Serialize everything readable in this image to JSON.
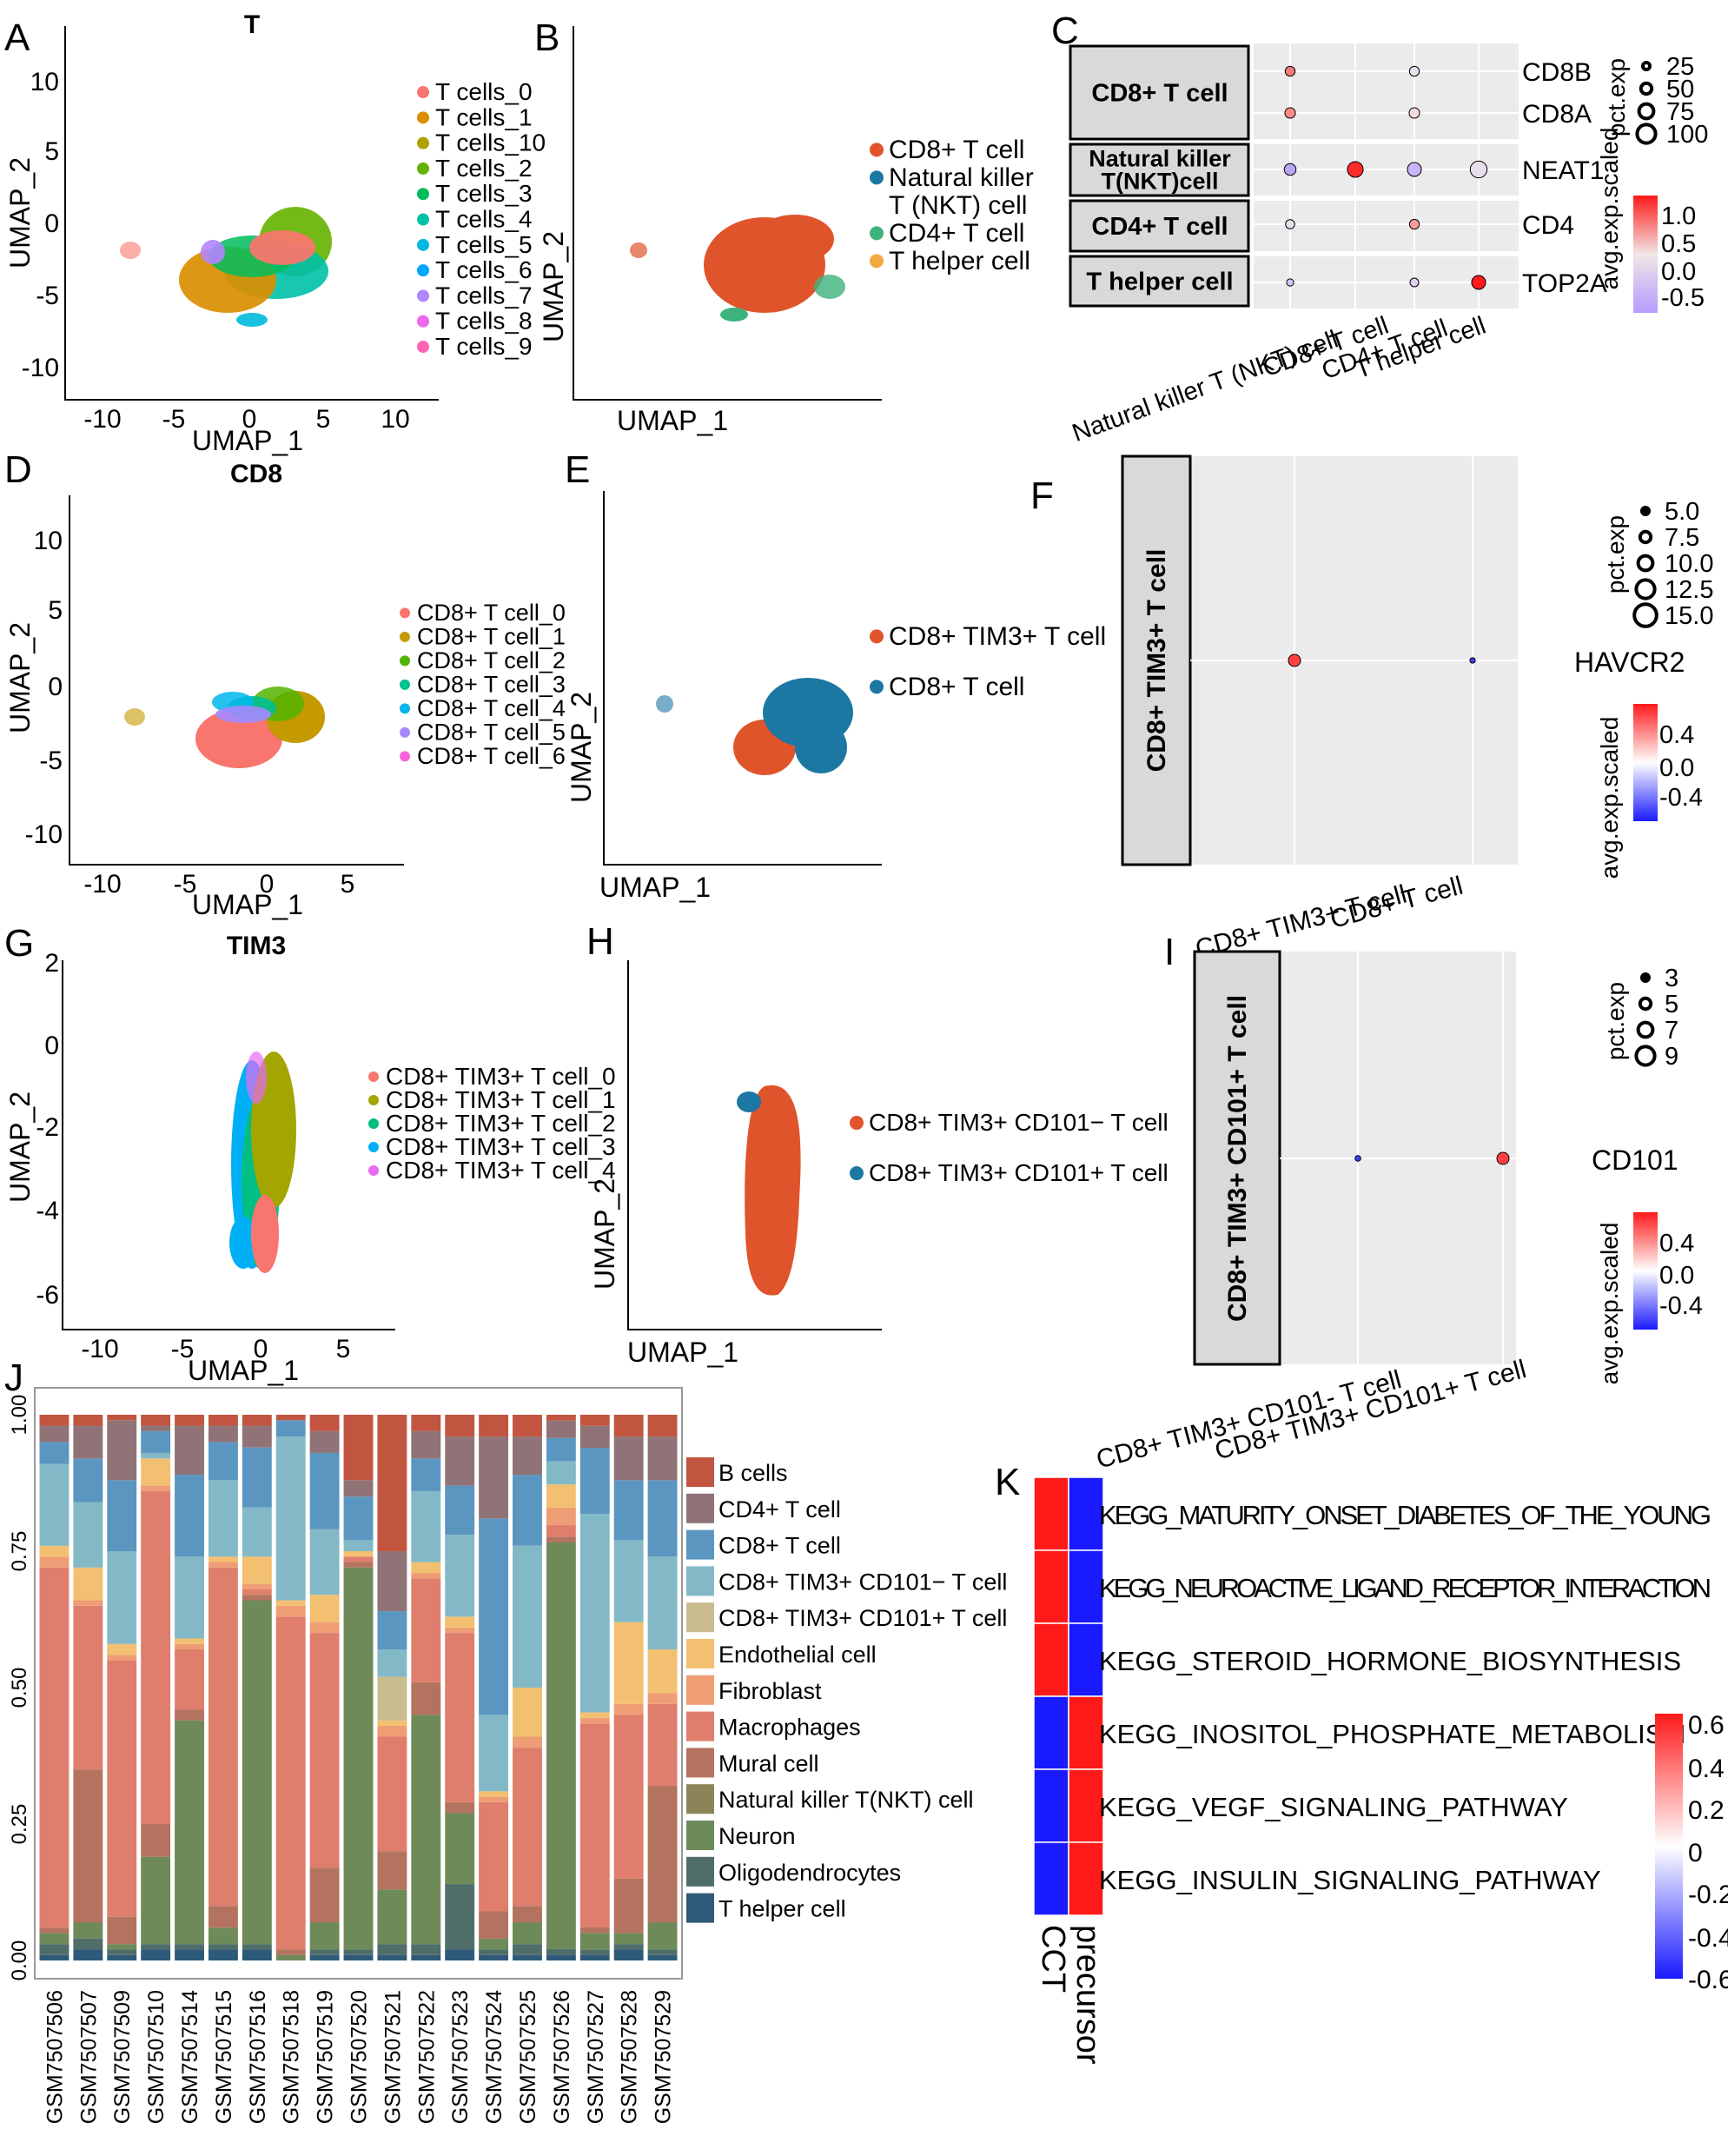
{
  "figure_label": "Multi-panel single-cell figure",
  "colors": {
    "cct": "#FF1A1A",
    "precursor_blue": "#1010FF",
    "panel_bg": "#EBEBEB",
    "strip_bg": "#D9D9D9",
    "low_scale": "#9C7BFF",
    "high_scale": "#FF1A1A"
  },
  "panels": {
    "A": {
      "label": "A",
      "title": "T",
      "xlabel": "UMAP_1",
      "ylabel": "UMAP_2",
      "xticks": [
        "-10",
        "-5",
        "0",
        "5",
        "10"
      ],
      "yticks": [
        "10",
        "5",
        "0",
        "-5",
        "-10"
      ],
      "legend": [
        {
          "label": "T cells_0",
          "color": "#F8766D"
        },
        {
          "label": "T cells_1",
          "color": "#DB8E00"
        },
        {
          "label": "T cells_10",
          "color": "#AEA200"
        },
        {
          "label": "T cells_2",
          "color": "#64B200"
        },
        {
          "label": "T cells_3",
          "color": "#00BD5C"
        },
        {
          "label": "T cells_4",
          "color": "#00C1A7"
        },
        {
          "label": "T cells_5",
          "color": "#00BADE"
        },
        {
          "label": "T cells_6",
          "color": "#00A6FF"
        },
        {
          "label": "T cells_7",
          "color": "#B385FF"
        },
        {
          "label": "T cells_8",
          "color": "#EF67EB"
        },
        {
          "label": "T cells_9",
          "color": "#FF63B6"
        }
      ]
    },
    "B": {
      "label": "B",
      "xlabel": "UMAP_1",
      "ylabel": "UMAP_2",
      "legend": [
        {
          "label": "CD8+ T cell",
          "color": "#E0542B"
        },
        {
          "label": "Natural killer",
          "color": "#1C77A3"
        },
        {
          "label": "T (NKT) cell",
          "color": ""
        },
        {
          "label": "CD4+ T cell",
          "color": "#3DB27A"
        },
        {
          "label": "T helper cell",
          "color": "#F4A940"
        }
      ]
    },
    "C": {
      "label": "C",
      "rows": [
        {
          "strip": "CD8+ T cell",
          "genes": [
            "CD8B",
            "CD8A"
          ]
        },
        {
          "strip": "Natural killer T(NKT)cell",
          "genes": [
            "NEAT1"
          ]
        },
        {
          "strip": "CD4+ T cell",
          "genes": [
            "CD4"
          ]
        },
        {
          "strip": "T helper cell",
          "genes": [
            "TOP2A"
          ]
        }
      ],
      "xcats": [
        "CD8+ T cell",
        "Natural killer T (NKT) cell",
        "CD4+ T cell",
        "T helper cell"
      ],
      "size_title": "pct.exp",
      "size_values": [
        "25",
        "50",
        "75",
        "100"
      ],
      "color_title": "avg.exp.scaled",
      "color_ticks": [
        "1.0",
        "0.5",
        "0.0",
        "-0.5"
      ]
    },
    "D": {
      "label": "D",
      "title": "CD8",
      "xlabel": "UMAP_1",
      "ylabel": "UMAP_2",
      "xticks": [
        "-10",
        "-5",
        "0",
        "5"
      ],
      "yticks": [
        "10",
        "5",
        "0",
        "-5",
        "-10"
      ],
      "legend": [
        {
          "label": "CD8+ T cell_0",
          "color": "#F8766D"
        },
        {
          "label": "CD8+ T cell_1",
          "color": "#C49A00"
        },
        {
          "label": "CD8+ T cell_2",
          "color": "#53B400"
        },
        {
          "label": "CD8+ T cell_3",
          "color": "#00C094"
        },
        {
          "label": "CD8+ T cell_4",
          "color": "#00B6EB"
        },
        {
          "label": "CD8+ T cell_5",
          "color": "#A58AFF"
        },
        {
          "label": "CD8+ T cell_6",
          "color": "#FB61D7"
        }
      ]
    },
    "E": {
      "label": "E",
      "xlabel": "UMAP_1",
      "ylabel": "UMAP_2",
      "legend": [
        {
          "label": "CD8+ TIM3+ T cell",
          "color": "#E0542B"
        },
        {
          "label": "CD8+ T cell",
          "color": "#1C77A3"
        }
      ]
    },
    "F": {
      "label": "F",
      "strip": "CD8+ TIM3+ T cell",
      "gene": "HAVCR2",
      "xcats": [
        "CD8+ TIM3+ T cell",
        "CD8+ T cell"
      ],
      "size_title": "pct.exp",
      "size_values": [
        "5.0",
        "7.5",
        "10.0",
        "12.5",
        "15.0"
      ],
      "color_title": "avg.exp.scaled",
      "color_ticks": [
        "0.4",
        "0.0",
        "-0.4"
      ]
    },
    "G": {
      "label": "G",
      "title": "TIM3",
      "xlabel": "UMAP_1",
      "ylabel": "UMAP_2",
      "xticks": [
        "-10",
        "-5",
        "0",
        "5"
      ],
      "yticks": [
        "2",
        "0",
        "-2",
        "-4",
        "-6"
      ],
      "legend": [
        {
          "label": "CD8+ TIM3+ T cell_0",
          "color": "#F8766D"
        },
        {
          "label": "CD8+ TIM3+ T cell_1",
          "color": "#A3A500"
        },
        {
          "label": "CD8+ TIM3+ T cell_2",
          "color": "#00BF7D"
        },
        {
          "label": "CD8+ TIM3+ T cell_3",
          "color": "#00B0F6"
        },
        {
          "label": "CD8+ TIM3+ T cell_4",
          "color": "#E76BF3"
        }
      ]
    },
    "H": {
      "label": "H",
      "xlabel": "UMAP_1",
      "ylabel": "UMAP_2",
      "legend": [
        {
          "label": "CD8+ TIM3+ CD101− T cell",
          "color": "#E0542B"
        },
        {
          "label": "CD8+ TIM3+ CD101+ T cell",
          "color": "#1C77A3"
        }
      ]
    },
    "I": {
      "label": "I",
      "strip": "CD8+ TIM3+ CD101+ T cell",
      "gene": "CD101",
      "xcats": [
        "CD8+ TIM3+ CD101- T cell",
        "CD8+ TIM3+ CD101+ T cell"
      ],
      "size_title": "pct.exp",
      "size_values": [
        "3",
        "5",
        "7",
        "9"
      ],
      "color_title": "avg.exp.scaled",
      "color_ticks": [
        "0.4",
        "0.0",
        "-0.4"
      ]
    },
    "J": {
      "label": "J"
    },
    "K": {
      "label": "K"
    }
  },
  "chart_data": [
    {
      "id": "J",
      "type": "bar",
      "stacked": true,
      "title": "",
      "xlabel": "",
      "ylabel": "",
      "ylim": [
        0,
        1
      ],
      "yticks": [
        "0.00",
        "0.25",
        "0.50",
        "0.75",
        "1.00"
      ],
      "categories": [
        "GSM7507506",
        "GSM7507507",
        "GSM7507509",
        "GSM7507510",
        "GSM7507514",
        "GSM7507515",
        "GSM7507516",
        "GSM7507518",
        "GSM7507519",
        "GSM7507520",
        "GSM7507521",
        "GSM7507522",
        "GSM7507523",
        "GSM7507524",
        "GSM7507525",
        "GSM7507526",
        "GSM7507527",
        "GSM7507528",
        "GSM7507529"
      ],
      "series": [
        {
          "name": "T helper cell",
          "color": "#2E5A7A",
          "values": [
            0.01,
            0.02,
            0.01,
            0.02,
            0.02,
            0.02,
            0.02,
            0.0,
            0.01,
            0.01,
            0.01,
            0.01,
            0.02,
            0.01,
            0.01,
            0.01,
            0.01,
            0.02,
            0.01
          ]
        },
        {
          "name": "Oligodendrocytes",
          "color": "#4F6E6A",
          "values": [
            0.02,
            0.02,
            0.01,
            0.01,
            0.01,
            0.01,
            0.01,
            0.0,
            0.01,
            0.01,
            0.02,
            0.02,
            0.12,
            0.01,
            0.02,
            0.01,
            0.01,
            0.01,
            0.01
          ]
        },
        {
          "name": "Neuron",
          "color": "#6E8A59",
          "values": [
            0.02,
            0.03,
            0.01,
            0.16,
            0.41,
            0.03,
            0.63,
            0.01,
            0.05,
            0.7,
            0.1,
            0.42,
            0.13,
            0.02,
            0.04,
            0.7,
            0.03,
            0.02,
            0.05
          ]
        },
        {
          "name": "Natural killer T(NKT) cell",
          "color": "#8B8458",
          "values": [
            0.0,
            0.0,
            0.0,
            0.0,
            0.0,
            0.0,
            0.0,
            0.0,
            0.0,
            0.0,
            0.0,
            0.0,
            0.0,
            0.0,
            0.0,
            0.0,
            0.0,
            0.0,
            0.0
          ]
        },
        {
          "name": "Mural cell",
          "color": "#B4735E",
          "values": [
            0.01,
            0.28,
            0.05,
            0.06,
            0.02,
            0.04,
            0.01,
            0.01,
            0.1,
            0.01,
            0.07,
            0.06,
            0.02,
            0.05,
            0.03,
            0.01,
            0.01,
            0.1,
            0.25
          ]
        },
        {
          "name": "Macrophages",
          "color": "#DF7E6C",
          "values": [
            0.66,
            0.3,
            0.47,
            0.61,
            0.11,
            0.62,
            0.01,
            0.61,
            0.43,
            0.01,
            0.21,
            0.19,
            0.31,
            0.2,
            0.29,
            0.02,
            0.37,
            0.3,
            0.15
          ]
        },
        {
          "name": "Fibroblast",
          "color": "#EE9D75",
          "values": [
            0.02,
            0.01,
            0.01,
            0.01,
            0.01,
            0.01,
            0.01,
            0.02,
            0.02,
            0.0,
            0.02,
            0.01,
            0.01,
            0.01,
            0.02,
            0.03,
            0.01,
            0.02,
            0.02
          ]
        },
        {
          "name": "Endothelial cell",
          "color": "#F2C070",
          "values": [
            0.02,
            0.06,
            0.02,
            0.05,
            0.01,
            0.01,
            0.05,
            0.01,
            0.05,
            0.01,
            0.01,
            0.02,
            0.02,
            0.01,
            0.09,
            0.04,
            0.01,
            0.15,
            0.08
          ]
        },
        {
          "name": "CD8+ TIM3+ CD101+ T cell",
          "color": "#C9BC8E",
          "values": [
            0.0,
            0.0,
            0.0,
            0.0,
            0.0,
            0.0,
            0.0,
            0.0,
            0.0,
            0.0,
            0.08,
            0.0,
            0.0,
            0.0,
            0.0,
            0.0,
            0.0,
            0.0,
            0.0
          ]
        },
        {
          "name": "CD8+ TIM3+ CD101− T cell",
          "color": "#83B9C7",
          "values": [
            0.15,
            0.12,
            0.17,
            0.01,
            0.15,
            0.14,
            0.09,
            0.3,
            0.12,
            0.02,
            0.05,
            0.13,
            0.15,
            0.14,
            0.26,
            0.04,
            0.36,
            0.15,
            0.17
          ]
        },
        {
          "name": "CD8+ T cell",
          "color": "#5B96C0",
          "values": [
            0.04,
            0.08,
            0.13,
            0.04,
            0.15,
            0.07,
            0.11,
            0.03,
            0.14,
            0.08,
            0.07,
            0.06,
            0.09,
            0.36,
            0.13,
            0.04,
            0.12,
            0.11,
            0.14
          ]
        },
        {
          "name": "CD4+ T cell",
          "color": "#907376",
          "values": [
            0.03,
            0.06,
            0.11,
            0.01,
            0.09,
            0.03,
            0.04,
            0.0,
            0.04,
            0.03,
            0.11,
            0.05,
            0.09,
            0.15,
            0.07,
            0.03,
            0.04,
            0.08,
            0.08
          ]
        },
        {
          "name": "B cells",
          "color": "#C25540",
          "values": [
            0.02,
            0.02,
            0.01,
            0.02,
            0.02,
            0.02,
            0.02,
            0.01,
            0.03,
            0.12,
            0.25,
            0.03,
            0.04,
            0.04,
            0.04,
            0.01,
            0.02,
            0.04,
            0.04
          ]
        }
      ]
    },
    {
      "id": "K",
      "type": "heatmap",
      "columns": [
        "CCT",
        "precursor"
      ],
      "rows": [
        "KEGG_MATURITY_ONSET_DIABETES_OF_THE_YOUNG",
        "KEGG_NEUROACTIVE_LIGAND_RECEPTOR_INTERACTION",
        "KEGG_STEROID_HORMONE_BIOSYNTHESIS",
        "KEGG_INOSITOL_PHOSPHATE_METABOLISM",
        "KEGG_VEGF_SIGNALING_PATHWAY",
        "KEGG_INSULIN_SIGNALING_PATHWAY"
      ],
      "values": [
        [
          0.7,
          -0.7
        ],
        [
          0.7,
          -0.7
        ],
        [
          0.7,
          -0.7
        ],
        [
          -0.7,
          0.7
        ],
        [
          -0.7,
          0.7
        ],
        [
          -0.7,
          0.7
        ]
      ],
      "scale_range": [
        -0.7,
        0.7
      ],
      "scale_ticks": [
        "0.6",
        "0.4",
        "0.2",
        "0",
        "-0.2",
        "-0.4",
        "-0.6"
      ]
    },
    {
      "id": "C",
      "type": "dotplot",
      "points": [
        {
          "gene": "CD8B",
          "cluster": 0,
          "pct": 15,
          "avg": 0.7
        },
        {
          "gene": "CD8B",
          "cluster": 2,
          "pct": 15,
          "avg": -0.1
        },
        {
          "gene": "CD8A",
          "cluster": 0,
          "pct": 18,
          "avg": 0.6
        },
        {
          "gene": "CD8A",
          "cluster": 2,
          "pct": 18,
          "avg": 0.1
        },
        {
          "gene": "NEAT1",
          "cluster": 0,
          "pct": 25,
          "avg": -0.5
        },
        {
          "gene": "NEAT1",
          "cluster": 1,
          "pct": 55,
          "avg": 1.2
        },
        {
          "gene": "NEAT1",
          "cluster": 2,
          "pct": 40,
          "avg": -0.4
        },
        {
          "gene": "NEAT1",
          "cluster": 3,
          "pct": 65,
          "avg": -0.1
        },
        {
          "gene": "CD4",
          "cluster": 0,
          "pct": 12,
          "avg": -0.1
        },
        {
          "gene": "CD4",
          "cluster": 2,
          "pct": 15,
          "avg": 0.5
        },
        {
          "gene": "TOP2A",
          "cluster": 0,
          "pct": 5,
          "avg": -0.3
        },
        {
          "gene": "TOP2A",
          "cluster": 2,
          "pct": 10,
          "avg": -0.2
        },
        {
          "gene": "TOP2A",
          "cluster": 3,
          "pct": 40,
          "avg": 1.3
        }
      ]
    },
    {
      "id": "F",
      "type": "dotplot",
      "points": [
        {
          "gene": "HAVCR2",
          "cluster": 0,
          "pct": 15,
          "avg": 0.5
        },
        {
          "gene": "HAVCR2",
          "cluster": 1,
          "pct": 3,
          "avg": -0.5
        }
      ]
    },
    {
      "id": "I",
      "type": "dotplot",
      "points": [
        {
          "gene": "CD101",
          "cluster": 0,
          "pct": 2,
          "avg": -0.5
        },
        {
          "gene": "CD101",
          "cluster": 1,
          "pct": 9,
          "avg": 0.5
        }
      ]
    }
  ]
}
